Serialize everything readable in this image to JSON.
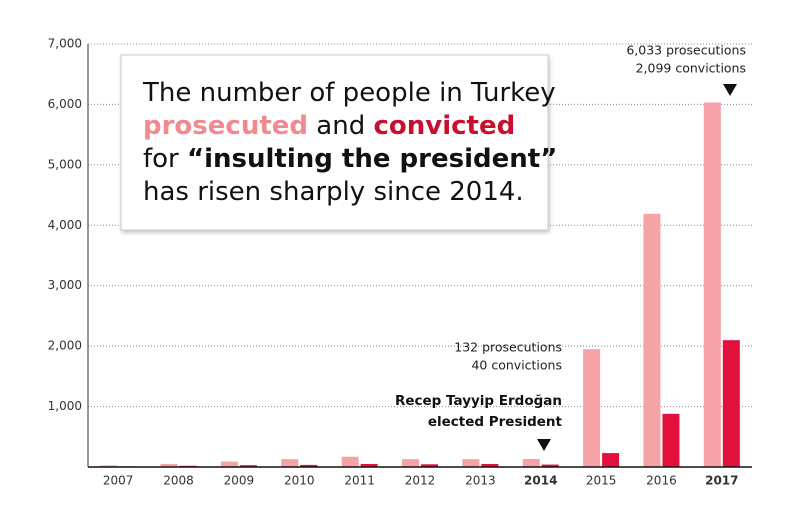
{
  "chart_data": {
    "type": "bar",
    "title_parts": [
      "The number of people in Turkey",
      "and",
      "for",
      "“insulting the president”",
      "has risen sharply since 2014."
    ],
    "categories": [
      "2007",
      "2008",
      "2009",
      "2010",
      "2011",
      "2012",
      "2013",
      "2014",
      "2015",
      "2016",
      "2017"
    ],
    "bold_categories": [
      "2014",
      "2017"
    ],
    "series": [
      {
        "name": "prosecuted",
        "color": "#f5a3a6",
        "values": [
          26,
          50,
          90,
          130,
          170,
          130,
          130,
          132,
          1950,
          4190,
          6033
        ]
      },
      {
        "name": "convicted",
        "color": "#e1103c",
        "values": [
          10,
          20,
          30,
          35,
          50,
          45,
          50,
          40,
          230,
          880,
          2099
        ]
      }
    ],
    "ylim": [
      0,
      7000
    ],
    "yticks": [
      {
        "value": 1000,
        "label": "1,000"
      },
      {
        "value": 2000,
        "label": "2,000"
      },
      {
        "value": 3000,
        "label": "3,000"
      },
      {
        "value": 4000,
        "label": "4,000"
      },
      {
        "value": 5000,
        "label": "5,000"
      },
      {
        "value": 6000,
        "label": "6,000"
      },
      {
        "value": 7000,
        "label": "7,000"
      }
    ],
    "grid": true,
    "annotations": [
      "6,033 prosecutions",
      "2,099 convictions",
      "132 prosecutions",
      "40 convictions",
      "Recep Tayyip Erdoğan",
      "elected President"
    ]
  }
}
